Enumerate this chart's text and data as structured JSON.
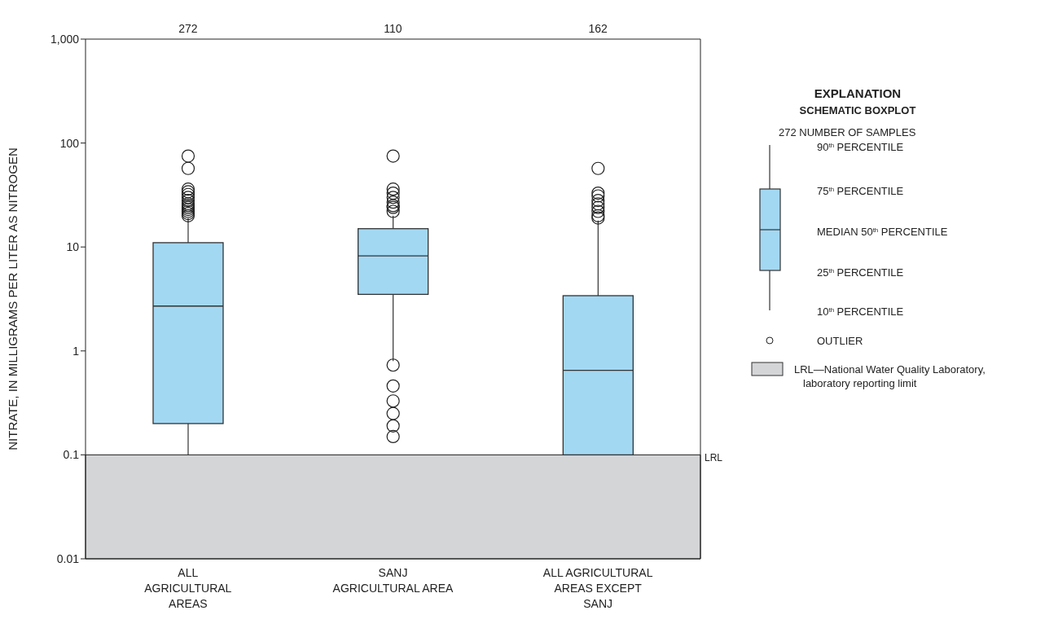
{
  "chart_data": {
    "type": "box",
    "categories": [
      "ALL\nAGRICULTURAL\nAREAS",
      "SANJ\nAGRICULTURAL AREA",
      "ALL AGRICULTURAL\nAREAS EXCEPT\nSANJ"
    ],
    "color": "#a3d8f3",
    "boxes": [
      {
        "low": 0.1,
        "q1": 0.2,
        "median": 2.7,
        "q3": 11,
        "high": 19,
        "outliers": [
          20,
          21,
          22,
          23,
          24,
          25,
          26,
          28,
          30,
          32,
          34,
          36,
          57,
          75
        ]
      },
      {
        "low": 0.8,
        "q1": 3.5,
        "median": 8.2,
        "q3": 15,
        "high": 20,
        "outliers": [
          0.15,
          0.19,
          0.25,
          0.33,
          0.46,
          0.73,
          22,
          24,
          25,
          27,
          30,
          33,
          36,
          75
        ]
      },
      {
        "low": 0.1,
        "q1": 0.1,
        "median": 0.65,
        "q3": 3.4,
        "high": 18,
        "outliers": [
          19,
          20,
          22,
          24,
          26,
          28,
          31,
          33,
          57
        ]
      }
    ],
    "ylabel": "NITRATE, IN MILLIGRAMS PER LITER AS NITROGEN",
    "log": true,
    "ylim": [
      0.01,
      1000
    ],
    "yticks": [
      0.01,
      0.1,
      1,
      10,
      100,
      {
        "value": 1000,
        "label": "1,000"
      }
    ],
    "bands": [
      {
        "axis": "y",
        "from": 0.01,
        "to": 0.1,
        "label": "LRL",
        "color": "#d4d5d7"
      }
    ],
    "legend": "right",
    "legend_title": "EXPLANATION",
    "annotations": [
      "272",
      "110",
      "162",
      "SCHEMATIC BOXPLOT",
      "272 NUMBER OF SAMPLES",
      "90$^{th}$ PERCENTILE",
      "75$^{th}$ PERCENTILE",
      "MEDIAN 50$^{th}$ PERCENTILE",
      "25$^{th}$ PERCENTILE",
      "10$^{th}$ PERCENTILE",
      "OUTLIER",
      "LRL—National Water Quality Laboratory, laboratory reporting limit"
    ]
  }
}
